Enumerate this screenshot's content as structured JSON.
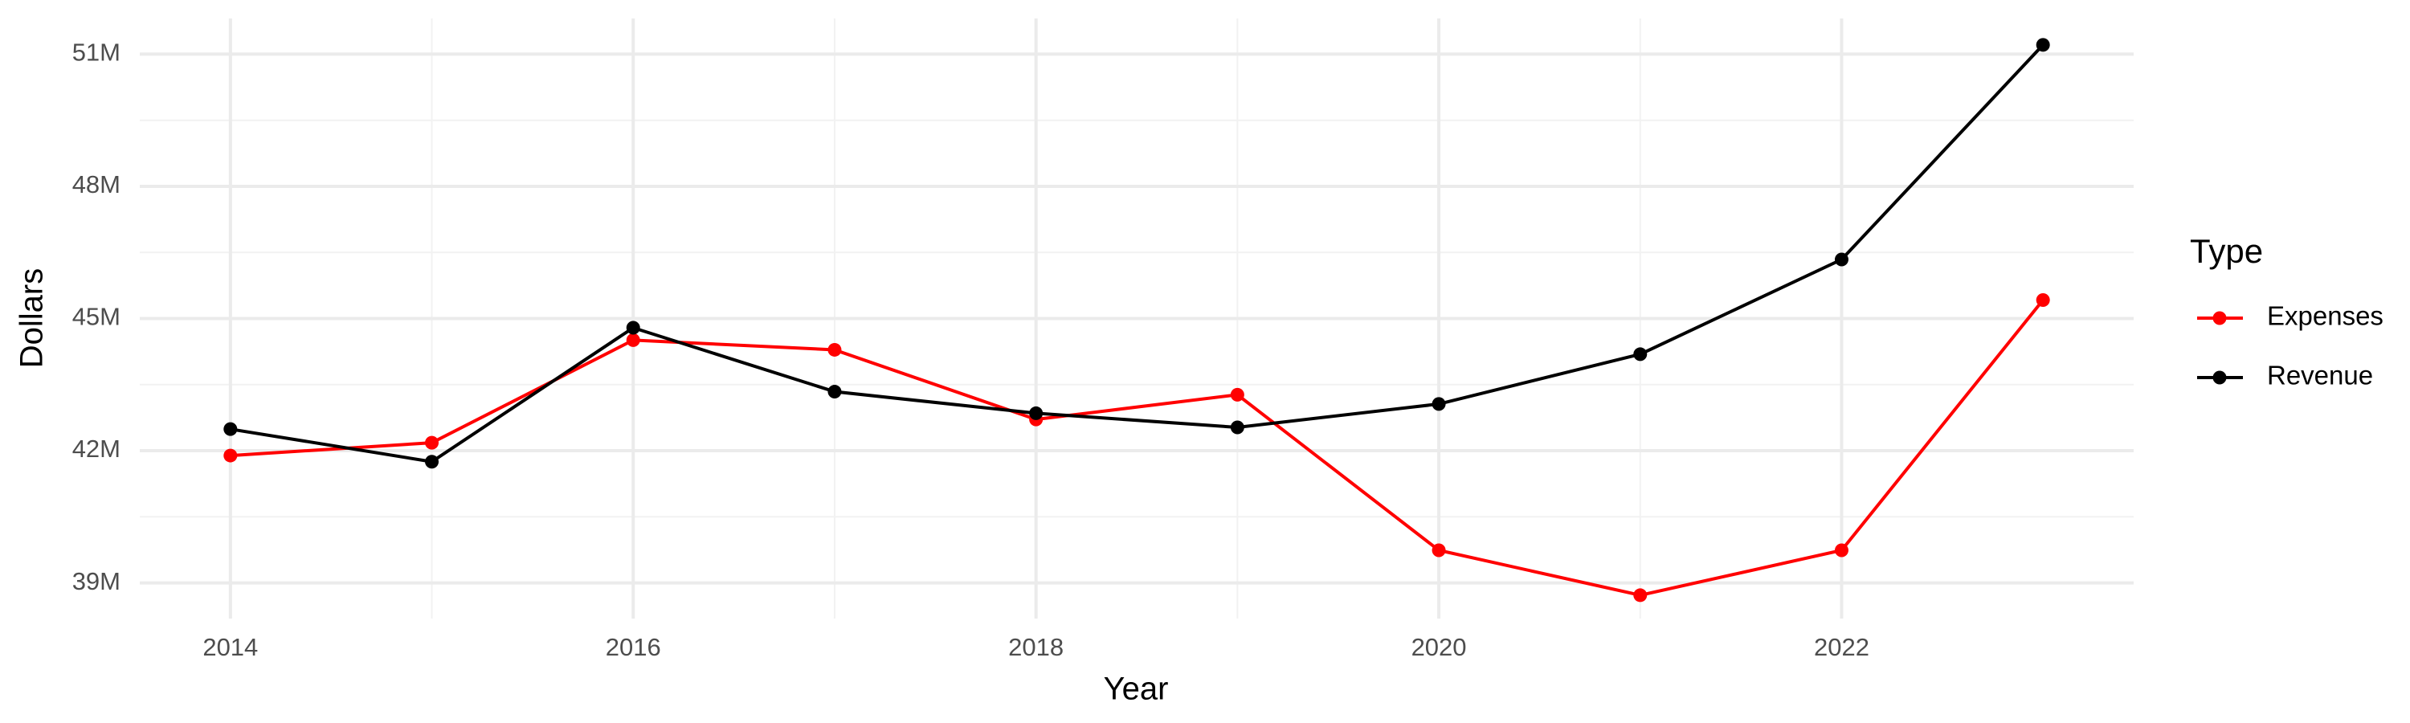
{
  "chart_data": {
    "type": "line",
    "x_label": "Year",
    "y_label": "Dollars",
    "legend_title": "Type",
    "x": [
      2014,
      2015,
      2016,
      2017,
      2018,
      2019,
      2020,
      2021,
      2022,
      2023
    ],
    "series": [
      {
        "name": "Expenses",
        "color": "#ff0000",
        "values": [
          41890000,
          42180000,
          44510000,
          44290000,
          42710000,
          43270000,
          39740000,
          38720000,
          39740000,
          45420000
        ]
      },
      {
        "name": "Revenue",
        "color": "#000000",
        "values": [
          42490000,
          41750000,
          44790000,
          43340000,
          42850000,
          42530000,
          43060000,
          44190000,
          46340000,
          51210000
        ]
      }
    ],
    "xlim": [
      2013.55,
      2023.45
    ],
    "xticks": [
      2014,
      2016,
      2018,
      2020,
      2022
    ],
    "ylim": [
      38190000,
      51810000
    ],
    "yticks": [
      {
        "value": 39000000,
        "label": "39M"
      },
      {
        "value": 42000000,
        "label": "42M"
      },
      {
        "value": 45000000,
        "label": "45M"
      },
      {
        "value": 48000000,
        "label": "48M"
      },
      {
        "value": 51000000,
        "label": "51M"
      }
    ],
    "grid": true,
    "legend": "right"
  }
}
